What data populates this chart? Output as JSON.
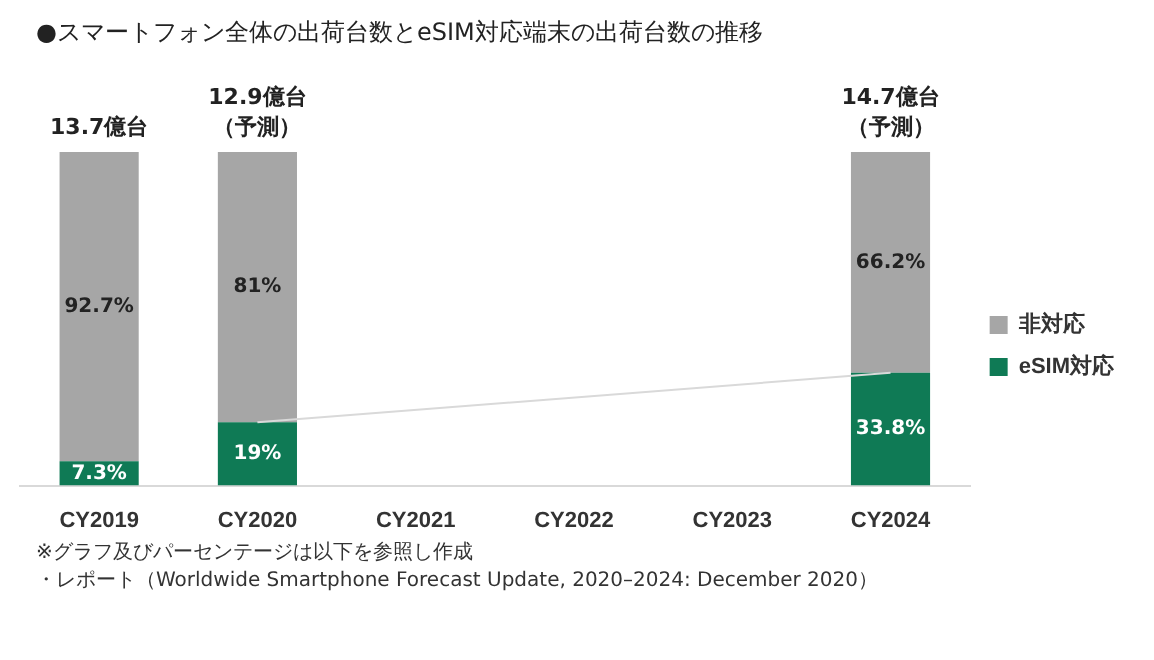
{
  "chart_data": {
    "type": "bar",
    "title": "●スマートフォン全体の出荷台数とeSIM対応端末の出荷台数の推移",
    "categories": [
      "CY2019",
      "CY2020",
      "CY2021",
      "CY2022",
      "CY2023",
      "CY2024"
    ],
    "stacked": true,
    "legend": "right",
    "tick_labels": "x",
    "series": [
      {
        "name": "eSIM対応",
        "color": "#0f7a55",
        "values": [
          7.3,
          19,
          null,
          null,
          null,
          33.8
        ],
        "value_labels": [
          "7.3%",
          "19%",
          null,
          null,
          null,
          "33.8%"
        ]
      },
      {
        "name": "非対応",
        "color": "#a6a6a6",
        "values": [
          92.7,
          81,
          null,
          null,
          null,
          66.2
        ],
        "value_labels": [
          "92.7%",
          "81%",
          null,
          null,
          null,
          "66.2%"
        ]
      },
      {
        "type": "line",
        "color": "#d9d9d9",
        "values": [
          null,
          19,
          null,
          null,
          null,
          33.8
        ]
      }
    ],
    "annotations": [
      {
        "text": "13.7億台",
        "x": "CY2019",
        "y": 100
      },
      {
        "text": "12.9億台（予測）",
        "x": "CY2020",
        "y": 100
      },
      {
        "text": "14.7億台（予測）",
        "x": "CY2024",
        "y": 100
      },
      "※グラフ及びパーセンテージは以下を参照し作成",
      "・レポート（Worldwide Smartphone Forecast Update, 2020–2024: December 2020）"
    ]
  }
}
